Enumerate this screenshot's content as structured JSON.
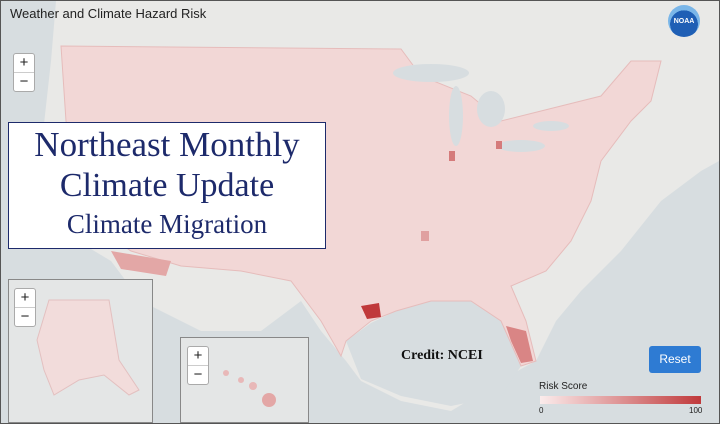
{
  "header": {
    "title": "Weather and Climate Hazard Risk",
    "logo": "NOAA"
  },
  "controls": {
    "zoom_in": "+",
    "zoom_out": "−",
    "reset": "Reset"
  },
  "overlay": {
    "line1": "Northeast Monthly",
    "line2": "Climate Update",
    "line3": "Climate Migration"
  },
  "credit": "Credit: NCEI",
  "legend": {
    "title": "Risk Score",
    "min": 0,
    "max": 100
  }
}
